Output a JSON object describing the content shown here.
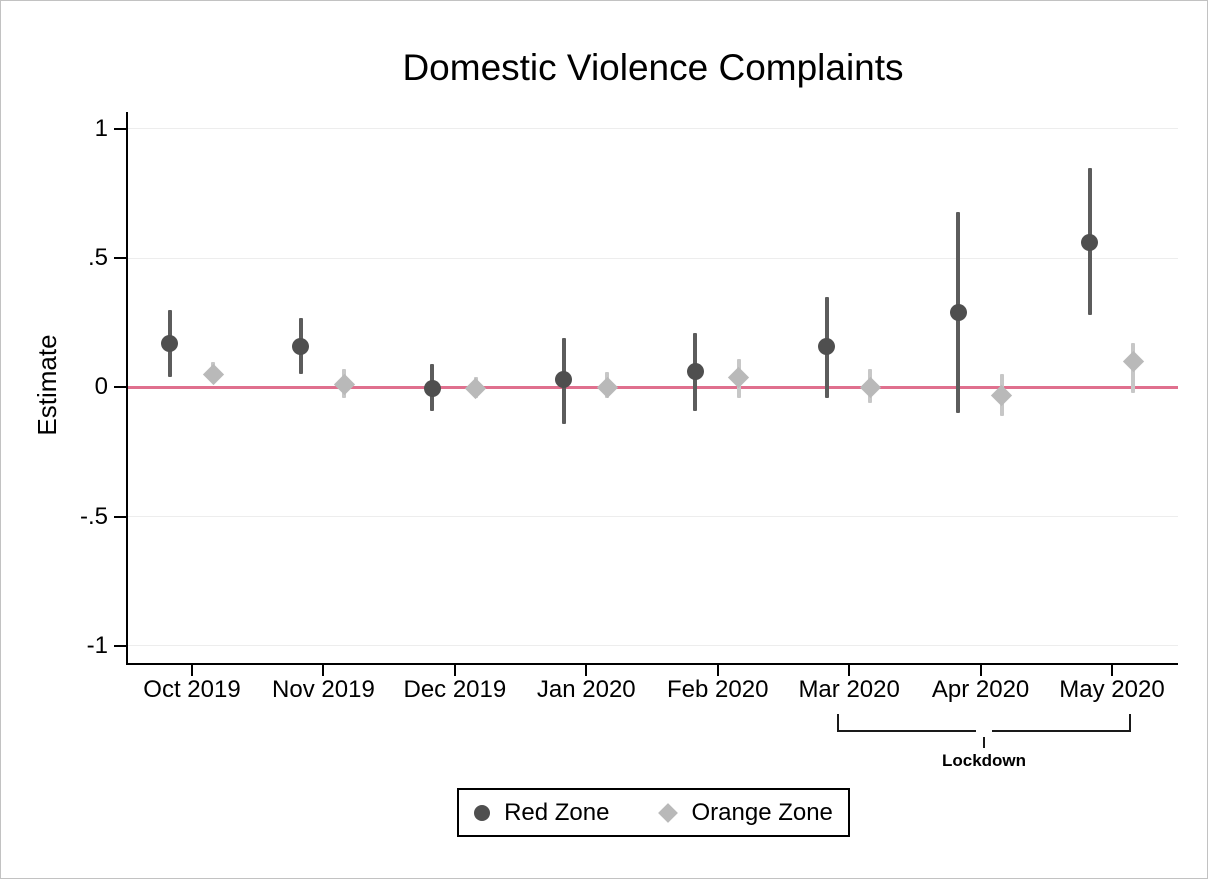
{
  "chart_data": {
    "type": "scatter",
    "title": "Domestic Violence Complaints",
    "ylabel": "Estimate",
    "xlabel": "",
    "categories": [
      "Oct 2019",
      "Nov 2019",
      "Dec 2019",
      "Jan 2020",
      "Feb 2020",
      "Mar 2020",
      "Apr 2020",
      "May 2020"
    ],
    "yticks": {
      "values": [
        1,
        0.5,
        0,
        -0.5,
        -1
      ],
      "labels": [
        "1",
        ".5",
        "0",
        "-.5",
        "-1"
      ]
    },
    "ylim": [
      -1.07,
      1.07
    ],
    "grid": true,
    "zero_line_value": 0,
    "legend_position": "bottom-center",
    "series": [
      {
        "name": "Red Zone",
        "marker": "circle",
        "color": "#4f4f4f",
        "ci_color": "#5c5c5c",
        "values": [
          0.17,
          0.16,
          -0.005,
          0.03,
          0.06,
          0.16,
          0.29,
          0.56
        ],
        "ci_low": [
          0.04,
          0.05,
          -0.09,
          -0.14,
          -0.09,
          -0.04,
          -0.1,
          0.28
        ],
        "ci_high": [
          0.3,
          0.27,
          0.09,
          0.19,
          0.21,
          0.35,
          0.68,
          0.85
        ]
      },
      {
        "name": "Orange Zone",
        "marker": "diamond",
        "color": "#b9b9b9",
        "ci_color": "#c7c7c7",
        "values": [
          0.05,
          0.01,
          -0.005,
          0.0,
          0.04,
          0.0,
          -0.03,
          0.1
        ],
        "ci_low": [
          0.02,
          -0.04,
          -0.04,
          -0.04,
          -0.04,
          -0.06,
          -0.11,
          -0.02
        ],
        "ci_high": [
          0.1,
          0.07,
          0.04,
          0.06,
          0.11,
          0.07,
          0.05,
          0.17
        ]
      }
    ],
    "annotations": [
      {
        "type": "bracket",
        "label": "Lockdown",
        "from_category": "Mar 2020",
        "to_category": "May 2020"
      }
    ]
  },
  "colors": {
    "zero_line": "#e0708e",
    "gridline": "#ededed",
    "axis": "#000000",
    "background": "#ffffff"
  }
}
